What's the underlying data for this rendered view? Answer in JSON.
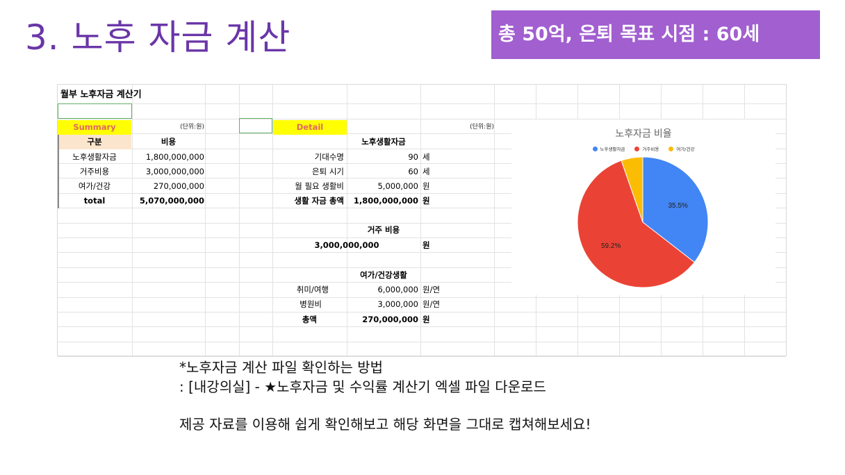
{
  "slide": {
    "title": "3. 노후 자금 계산",
    "target": "총 50억, 은퇴 목표 시점 : 60세"
  },
  "sheet": {
    "title": "월부 노후자금 계산기",
    "summary": {
      "tag": "Summary",
      "unit": "(단위:원)",
      "headers": [
        "구분",
        "비용"
      ],
      "rows": [
        {
          "label": "노후생활자금",
          "value": "1,800,000,000"
        },
        {
          "label": "거주비용",
          "value": "3,000,000,000"
        },
        {
          "label": "여가/건강",
          "value": "270,000,000"
        },
        {
          "label": "total",
          "value": "5,070,000,000"
        }
      ]
    },
    "detail": {
      "tag": "Detail",
      "unit": "(단위:원)",
      "living": {
        "header": "노후생활자금",
        "rows": [
          {
            "label": "기대수명",
            "value": "90",
            "unit": "세"
          },
          {
            "label": "은퇴 시기",
            "value": "60",
            "unit": "세"
          },
          {
            "label": "월 필요 생활비",
            "value": "5,000,000",
            "unit": "원"
          },
          {
            "label": "생활 자금 총액",
            "value": "1,800,000,000",
            "unit": "원"
          }
        ]
      },
      "housing": {
        "header": "거주 비용",
        "value": "3,000,000,000",
        "unit": "원"
      },
      "leisure": {
        "header": "여가/건강생활",
        "rows": [
          {
            "label": "취미/여행",
            "value": "6,000,000",
            "unit": "원/연"
          },
          {
            "label": "병원비",
            "value": "3,000,000",
            "unit": "원/연"
          },
          {
            "label": "총액",
            "value": "270,000,000",
            "unit": "원"
          }
        ]
      }
    }
  },
  "chart_data": {
    "type": "pie",
    "title": "노후자금 비율",
    "categories": [
      "노후생활자금",
      "거주비용",
      "여가/건강"
    ],
    "values": [
      1800000000,
      3000000000,
      270000000
    ],
    "percent_labels": [
      "35.5%",
      "59.2%",
      ""
    ],
    "colors": [
      "#4285f4",
      "#ea4335",
      "#fbbc04"
    ],
    "legend": "top"
  },
  "notes": {
    "line1": "*노후자금 계산 파일 확인하는 방법",
    "line2": ": [내강의실] - ★노후자금 및 수익률 계산기 엑셀 파일 다운로드",
    "line3": "제공 자료를 이용해 쉽게 확인해보고 해당 화면을 그대로 캡쳐해보세요!"
  }
}
